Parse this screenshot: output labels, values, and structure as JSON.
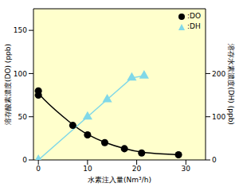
{
  "chart_data": {
    "type": "line",
    "xlabel": "水素注入量(Nm³/h)",
    "ylabel": "溶存酸素濃度(DO)  (ppb)",
    "y2label": "溶存水素濃度(DH)  (ppb)",
    "xlim": [
      -1,
      34
    ],
    "xticks": [
      0,
      10,
      20,
      30
    ],
    "ylim": [
      0,
      175
    ],
    "yticks": [
      0,
      50,
      100,
      150
    ],
    "y2lim": [
      0,
      350
    ],
    "y2ticks": [
      0,
      100,
      200
    ],
    "grid": false,
    "legend": "upper right",
    "series": [
      {
        "name": ":DO",
        "color": "#000000",
        "marker": "circle",
        "line_style": "solid",
        "x": [
          0,
          0,
          7,
          10,
          13.5,
          17.5,
          21,
          28.5
        ],
        "values": [
          80,
          75,
          40,
          29,
          20,
          13,
          8,
          6
        ]
      },
      {
        "name": ":DH",
        "color": "#80d8e8",
        "marker": "triangle",
        "line_style": "solid",
        "axis": "y2",
        "x": [
          0,
          10,
          14,
          19,
          21.5
        ],
        "values": [
          0,
          100,
          140,
          190,
          195
        ]
      }
    ]
  }
}
